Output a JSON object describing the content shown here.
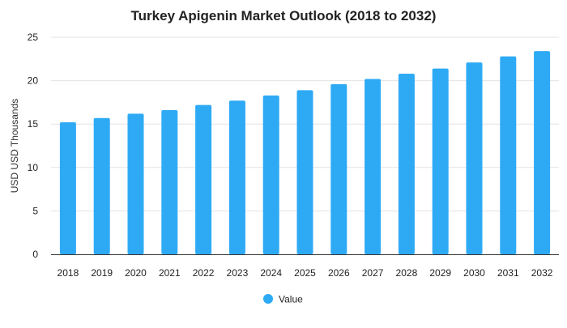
{
  "chart_data": {
    "type": "bar",
    "title": "Turkey Apigenin Market Outlook (2018 to 2032)",
    "xlabel": "",
    "ylabel": "USD USD Thousands",
    "categories": [
      "2018",
      "2019",
      "2020",
      "2021",
      "2022",
      "2023",
      "2024",
      "2025",
      "2026",
      "2027",
      "2028",
      "2029",
      "2030",
      "2031",
      "2032"
    ],
    "series": [
      {
        "name": "Value",
        "color": "#2eaaf5",
        "values": [
          15.2,
          15.7,
          16.2,
          16.6,
          17.2,
          17.7,
          18.3,
          18.9,
          19.6,
          20.2,
          20.8,
          21.4,
          22.1,
          22.8,
          23.4
        ]
      }
    ],
    "ylim": [
      0,
      25
    ],
    "yticks": [
      0,
      5,
      10,
      15,
      20,
      25
    ],
    "grid": true,
    "legend_position": "bottom-center"
  }
}
